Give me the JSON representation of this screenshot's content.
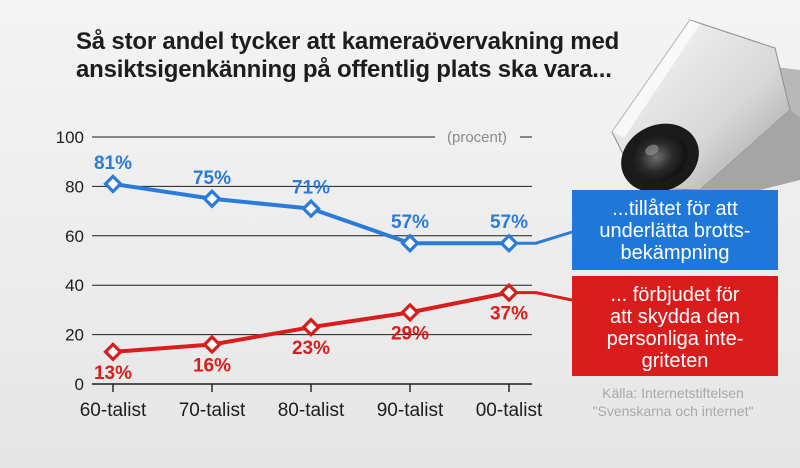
{
  "title": {
    "line1": "Så stor andel tycker att kameraövervakning med",
    "line2": "ansiktsigenkänning på offentlig plats ska vara..."
  },
  "chart_data": {
    "type": "line",
    "title": "Så stor andel tycker att kameraövervakning med ansiktsigenkänning på offentlig plats ska vara...",
    "categories": [
      "60-talist",
      "70-talist",
      "80-talist",
      "90-talist",
      "00-talist"
    ],
    "unit_label": "(procent)",
    "ylim": [
      0,
      100
    ],
    "yticks": [
      0,
      20,
      40,
      60,
      80,
      100
    ],
    "grid": true,
    "series": [
      {
        "name": "...tillåtet för att underlätta brottsbekämpning",
        "color": "#2b7bd9",
        "values": [
          81,
          75,
          71,
          57,
          57
        ],
        "labels": [
          "81%",
          "75%",
          "71%",
          "57%",
          "57%"
        ]
      },
      {
        "name": "... förbjudet för att skydda den personliga integriteten",
        "color": "#d91d1d",
        "values": [
          13,
          16,
          23,
          29,
          37
        ],
        "labels": [
          "13%",
          "16%",
          "23%",
          "29%",
          "37%"
        ]
      }
    ]
  },
  "legend": {
    "blue": {
      "line1": "...tillåtet för att",
      "line2": "underlätta brotts-",
      "line3": "bekämpning"
    },
    "red": {
      "line1": "... förbjudet för",
      "line2": "att skydda den",
      "line3": "personliga inte-",
      "line4": "griteten"
    }
  },
  "source": {
    "line1": "Källa: Internetstiftelsen",
    "line2": "\"Svenskarna och internet\""
  },
  "colors": {
    "blue": "#2b7bd9",
    "red": "#d91d1d",
    "grid": "#1d1d1d"
  }
}
